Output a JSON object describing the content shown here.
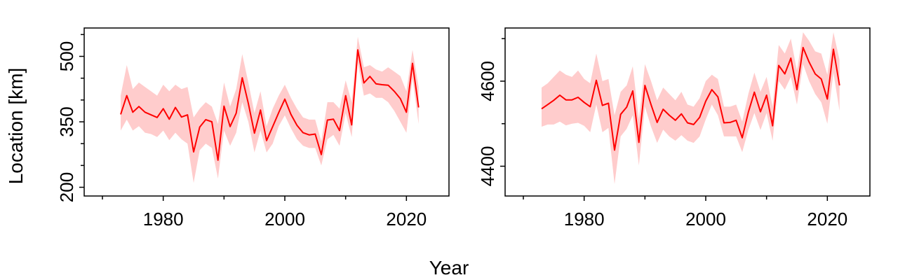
{
  "figure": {
    "xlabel": "Year",
    "ylabel": "Location [km]"
  },
  "colors": {
    "line": "#ff0000",
    "band": "#ffcccc"
  },
  "chart_data": [
    {
      "type": "line",
      "panel": "left",
      "xlim": [
        1967,
        2027
      ],
      "ylim": [
        180,
        565
      ],
      "x_ticks": [
        1980,
        2000,
        2020
      ],
      "x_minor_ticks": [
        1970,
        1990,
        2010
      ],
      "y_ticks": [
        200,
        350,
        500
      ],
      "y_minor_ticks": [
        250,
        300,
        400,
        450,
        550
      ],
      "grid": false,
      "series": [
        {
          "x": [
            1973,
            1974,
            1975,
            1976,
            1977,
            1978,
            1979,
            1980,
            1981,
            1982,
            1983,
            1984,
            1985,
            1986,
            1987,
            1988,
            1989,
            1990,
            1991,
            1992,
            1993,
            1994,
            1995,
            1996,
            1997,
            1998,
            1999,
            2000,
            2001,
            2002,
            2003,
            2004,
            2005,
            2006,
            2007,
            2008,
            2009,
            2010,
            2011,
            2012,
            2013,
            2014,
            2015,
            2016,
            2017,
            2018,
            2019,
            2020,
            2021,
            2022
          ],
          "y": [
            367,
            410,
            372,
            385,
            372,
            366,
            360,
            380,
            356,
            383,
            361,
            366,
            281,
            338,
            355,
            350,
            262,
            386,
            339,
            370,
            451,
            392,
            324,
            377,
            307,
            339,
            371,
            402,
            367,
            342,
            325,
            320,
            322,
            275,
            354,
            356,
            330,
            410,
            343,
            515,
            439,
            454,
            437,
            435,
            434,
            420,
            403,
            372,
            484,
            383
          ],
          "lower": [
            330,
            355,
            330,
            340,
            325,
            322,
            315,
            330,
            308,
            325,
            310,
            300,
            210,
            285,
            300,
            290,
            220,
            330,
            295,
            325,
            395,
            350,
            280,
            330,
            280,
            300,
            340,
            365,
            335,
            310,
            295,
            290,
            290,
            250,
            310,
            320,
            295,
            370,
            315,
            485,
            410,
            415,
            405,
            405,
            395,
            375,
            350,
            325,
            450,
            345
          ],
          "upper": [
            410,
            480,
            425,
            440,
            430,
            420,
            410,
            435,
            420,
            435,
            425,
            430,
            360,
            380,
            395,
            385,
            345,
            440,
            385,
            425,
            505,
            440,
            370,
            420,
            340,
            380,
            410,
            435,
            405,
            380,
            360,
            355,
            355,
            305,
            395,
            395,
            380,
            445,
            395,
            545,
            475,
            480,
            470,
            465,
            475,
            465,
            455,
            420,
            515,
            430
          ]
        }
      ]
    },
    {
      "type": "line",
      "panel": "right",
      "xlim": [
        1967,
        2027
      ],
      "ylim": [
        4330,
        4725
      ],
      "x_ticks": [
        1980,
        2000,
        2020
      ],
      "x_minor_ticks": [
        1970,
        1990,
        2010
      ],
      "y_ticks": [
        4400,
        4600
      ],
      "y_minor_ticks": [
        4500,
        4700
      ],
      "grid": false,
      "series": [
        {
          "x": [
            1973,
            1974,
            1975,
            1976,
            1977,
            1978,
            1979,
            1980,
            1981,
            1982,
            1983,
            1984,
            1985,
            1986,
            1987,
            1988,
            1989,
            1990,
            1991,
            1992,
            1993,
            1994,
            1995,
            1996,
            1997,
            1998,
            1999,
            2000,
            2001,
            2002,
            2003,
            2004,
            2005,
            2006,
            2007,
            2008,
            2009,
            2010,
            2011,
            2012,
            2013,
            2014,
            2015,
            2016,
            2017,
            2018,
            2019,
            2020,
            2021,
            2022
          ],
          "y": [
            4535,
            4545,
            4555,
            4567,
            4556,
            4556,
            4562,
            4550,
            4540,
            4602,
            4543,
            4548,
            4438,
            4522,
            4539,
            4577,
            4456,
            4590,
            4545,
            4503,
            4534,
            4520,
            4508,
            4523,
            4502,
            4498,
            4515,
            4553,
            4580,
            4563,
            4502,
            4503,
            4508,
            4467,
            4527,
            4574,
            4528,
            4567,
            4495,
            4637,
            4617,
            4654,
            4580,
            4679,
            4645,
            4617,
            4605,
            4558,
            4675,
            4590
          ],
          "lower": [
            4493,
            4498,
            4498,
            4505,
            4496,
            4500,
            4502,
            4495,
            4480,
            4545,
            4480,
            4490,
            4358,
            4470,
            4488,
            4520,
            4402,
            4540,
            4493,
            4455,
            4486,
            4470,
            4460,
            4473,
            4460,
            4455,
            4470,
            4510,
            4545,
            4520,
            4470,
            4470,
            4470,
            4433,
            4485,
            4525,
            4485,
            4525,
            4460,
            4600,
            4580,
            4610,
            4545,
            4640,
            4600,
            4570,
            4550,
            4500,
            4620,
            4530
          ],
          "upper": [
            4585,
            4595,
            4610,
            4625,
            4615,
            4610,
            4625,
            4605,
            4595,
            4665,
            4600,
            4605,
            4520,
            4575,
            4590,
            4635,
            4510,
            4640,
            4600,
            4555,
            4585,
            4570,
            4555,
            4575,
            4545,
            4540,
            4560,
            4600,
            4615,
            4605,
            4540,
            4540,
            4545,
            4505,
            4570,
            4620,
            4575,
            4610,
            4540,
            4685,
            4665,
            4700,
            4625,
            4715,
            4695,
            4670,
            4665,
            4615,
            4715,
            4650
          ]
        }
      ]
    }
  ]
}
